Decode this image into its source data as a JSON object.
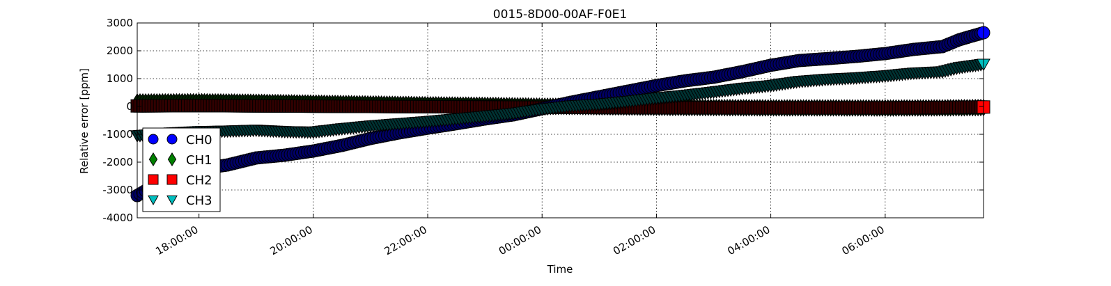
{
  "chart_data": {
    "type": "scatter",
    "title": "0015-8D00-00AF-F0E1",
    "xlabel": "Time",
    "ylabel": "Relative error [ppm]",
    "x_ticks": [
      {
        "t": 1.0,
        "label": "18:00:00"
      },
      {
        "t": 3.0,
        "label": "20:00:00"
      },
      {
        "t": 5.0,
        "label": "22:00:00"
      },
      {
        "t": 7.0,
        "label": "00:00:00"
      },
      {
        "t": 9.0,
        "label": "02:00:00"
      },
      {
        "t": 11.0,
        "label": "04:00:00"
      },
      {
        "t": 13.0,
        "label": "06:00:00"
      }
    ],
    "xlim": [
      -0.08,
      14.72
    ],
    "ylim": [
      -4000,
      3000
    ],
    "y_ticks": [
      -4000,
      -3000,
      -2000,
      -1000,
      0,
      1000,
      2000,
      3000
    ],
    "grid": true,
    "legend_position": "lower-left",
    "series": [
      {
        "name": "CH0",
        "marker": "circle",
        "face": "#0000ff",
        "edge": "#000066",
        "points": [
          [
            -0.08,
            -3200
          ],
          [
            0.5,
            -2500
          ],
          [
            1.0,
            -2250
          ],
          [
            1.5,
            -2100
          ],
          [
            2.0,
            -1850
          ],
          [
            2.5,
            -1750
          ],
          [
            3.0,
            -1600
          ],
          [
            3.5,
            -1400
          ],
          [
            4.0,
            -1150
          ],
          [
            4.5,
            -950
          ],
          [
            5.0,
            -780
          ],
          [
            5.5,
            -620
          ],
          [
            6.0,
            -450
          ],
          [
            6.5,
            -300
          ],
          [
            7.0,
            -80
          ],
          [
            7.5,
            150
          ],
          [
            8.0,
            350
          ],
          [
            8.5,
            550
          ],
          [
            9.0,
            750
          ],
          [
            9.5,
            920
          ],
          [
            10.0,
            1050
          ],
          [
            10.5,
            1250
          ],
          [
            11.0,
            1480
          ],
          [
            11.5,
            1650
          ],
          [
            12.0,
            1720
          ],
          [
            12.5,
            1800
          ],
          [
            13.0,
            1900
          ],
          [
            13.5,
            2050
          ],
          [
            14.0,
            2150
          ],
          [
            14.3,
            2400
          ],
          [
            14.72,
            2650
          ]
        ]
      },
      {
        "name": "CH1",
        "marker": "diamond",
        "face": "#008000",
        "edge": "#002200",
        "points": [
          [
            -0.08,
            160
          ],
          [
            1.0,
            170
          ],
          [
            2.0,
            150
          ],
          [
            3.0,
            120
          ],
          [
            4.0,
            90
          ],
          [
            5.0,
            60
          ],
          [
            6.0,
            40
          ],
          [
            7.0,
            10
          ],
          [
            8.0,
            -10
          ],
          [
            9.0,
            -30
          ],
          [
            10.0,
            -40
          ],
          [
            11.0,
            -50
          ],
          [
            12.0,
            -50
          ],
          [
            13.0,
            -55
          ],
          [
            14.0,
            -50
          ],
          [
            14.72,
            -40
          ]
        ]
      },
      {
        "name": "CH2",
        "marker": "square",
        "face": "#ff0000",
        "edge": "#330000",
        "points": [
          [
            -0.08,
            20
          ],
          [
            1.0,
            30
          ],
          [
            2.0,
            20
          ],
          [
            3.0,
            10
          ],
          [
            4.0,
            0
          ],
          [
            5.0,
            -10
          ],
          [
            6.0,
            -20
          ],
          [
            7.0,
            -30
          ],
          [
            8.0,
            -40
          ],
          [
            9.0,
            -45
          ],
          [
            10.0,
            -45
          ],
          [
            11.0,
            -50
          ],
          [
            12.0,
            -50
          ],
          [
            13.0,
            -50
          ],
          [
            14.0,
            -40
          ],
          [
            14.72,
            -20
          ]
        ]
      },
      {
        "name": "CH3",
        "marker": "triangle-down",
        "face": "#00bfbf",
        "edge": "#003333",
        "points": [
          [
            -0.08,
            -1050
          ],
          [
            0.5,
            -950
          ],
          [
            1.0,
            -900
          ],
          [
            1.5,
            -880
          ],
          [
            2.0,
            -850
          ],
          [
            2.5,
            -900
          ],
          [
            3.0,
            -920
          ],
          [
            3.5,
            -800
          ],
          [
            4.0,
            -700
          ],
          [
            4.5,
            -620
          ],
          [
            5.0,
            -540
          ],
          [
            5.5,
            -450
          ],
          [
            6.0,
            -350
          ],
          [
            6.5,
            -250
          ],
          [
            7.0,
            -100
          ],
          [
            7.5,
            20
          ],
          [
            8.0,
            80
          ],
          [
            8.5,
            180
          ],
          [
            9.0,
            300
          ],
          [
            9.5,
            400
          ],
          [
            10.0,
            520
          ],
          [
            10.5,
            650
          ],
          [
            11.0,
            750
          ],
          [
            11.5,
            900
          ],
          [
            12.0,
            980
          ],
          [
            12.5,
            1030
          ],
          [
            13.0,
            1100
          ],
          [
            13.5,
            1200
          ],
          [
            14.0,
            1250
          ],
          [
            14.3,
            1400
          ],
          [
            14.72,
            1520
          ]
        ]
      }
    ]
  },
  "colors": {
    "background": "#ffffff",
    "grid": "#000000",
    "axes": "#000000"
  }
}
